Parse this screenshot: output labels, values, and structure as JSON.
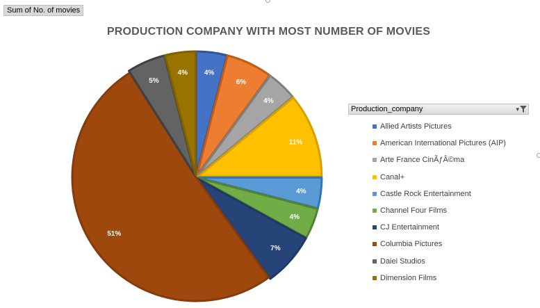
{
  "field_button": {
    "label": "Sum of No. of movies"
  },
  "chart_data": {
    "type": "pie",
    "title": "PRODUCTION COMPANY WITH MOST NUMBER OF MOVIES",
    "legend_title": "Production_company",
    "legend_position": "right",
    "categories": [
      "Allied Artists Pictures",
      "American International Pictures (AIP)",
      "Arte France CinÃƒÂ©ma",
      "Canal+",
      "Castle Rock Entertainment",
      "Channel Four Films",
      "CJ Entertainment",
      "Columbia Pictures",
      "Daiei Studios",
      "Dimension Films"
    ],
    "values": [
      4,
      6,
      4,
      11,
      4,
      4,
      7,
      51,
      5,
      4
    ],
    "data_labels": [
      "4%",
      "6%",
      "4%",
      "11%",
      "4%",
      "4%",
      "7%",
      "51%",
      "5%",
      "4%"
    ],
    "colors": [
      "#4472c4",
      "#ed7d31",
      "#a5a5a5",
      "#ffc000",
      "#5b9bd5",
      "#70ad47",
      "#264478",
      "#9e480e",
      "#636363",
      "#997300"
    ],
    "edge_colors": [
      "#2f5597",
      "#c55a11",
      "#7f7f7f",
      "#d6a000",
      "#2e75b6",
      "#548235",
      "#1f3864",
      "#843c0c",
      "#404040",
      "#7f6000"
    ]
  }
}
